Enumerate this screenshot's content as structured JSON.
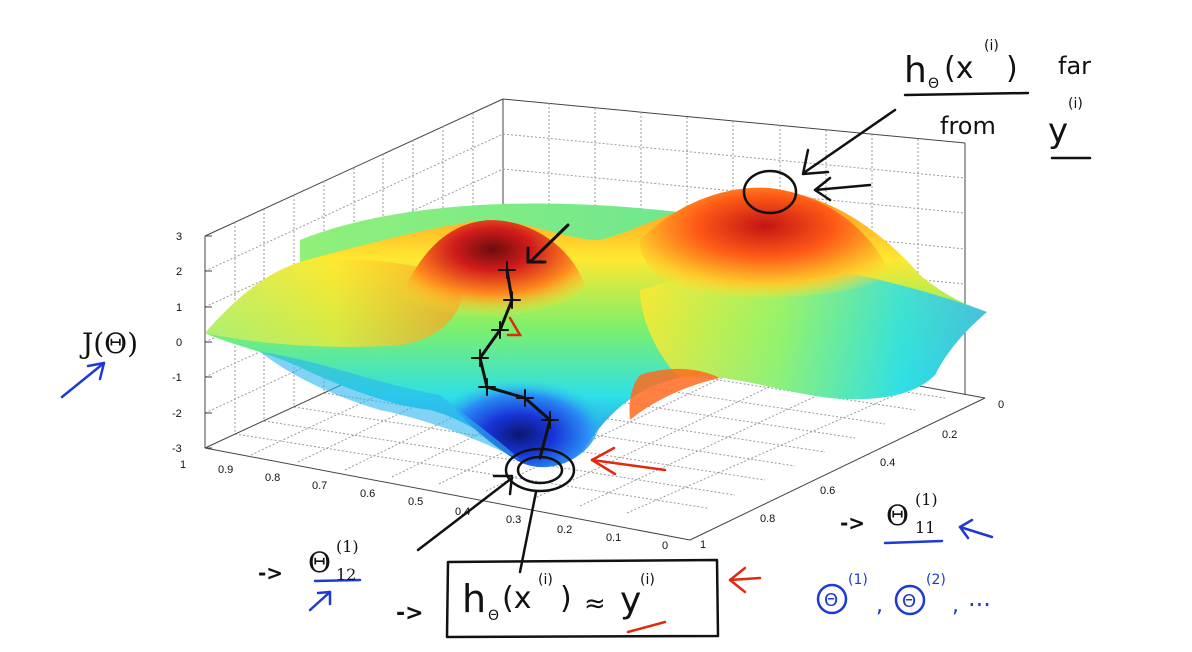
{
  "plot": {
    "z_axis_label": "J(Θ)",
    "z_ticks": [
      "3",
      "2",
      "1",
      "0",
      "-1",
      "-2",
      "-3"
    ],
    "left_axis_ticks": [
      "1",
      "0.9",
      "0.8",
      "0.7",
      "0.6",
      "0.5",
      "0.4",
      "0.3",
      "0.2",
      "0.1",
      "0"
    ],
    "right_axis_ticks": [
      "0",
      "0.2",
      "0.4",
      "0.6",
      "0.8",
      "1"
    ]
  },
  "labels": {
    "theta12": {
      "sym": "Θ",
      "sup": "(1)",
      "sub": "12"
    },
    "theta11": {
      "sym": "Θ",
      "sup": "(1)",
      "sub": "11"
    }
  },
  "annotations": {
    "top_right": {
      "h": "h",
      "theta": "Θ",
      "x": "(x",
      "xsup": "(i)",
      "close": ")",
      "far": "far",
      "from": "from",
      "y": "y",
      "ysup": "(i)"
    },
    "bottom_box": {
      "h": "h",
      "theta": "Θ",
      "x": "(x",
      "xsup": "(i)",
      "close": ")",
      "approx": "≈",
      "y": "y",
      "ysup": "(i)"
    },
    "bottom_right": {
      "t1": "Θ",
      "sup1": "(1)",
      "comma1": ",",
      "t2": "Θ",
      "sup2": "(2)",
      "comma2": ",",
      "dots": "..."
    },
    "arrow_glyph": "->"
  },
  "colors": {
    "ink": "#111111",
    "red": "#e02a10",
    "blue": "#1e3ad6",
    "grid": "#9a9a9a"
  }
}
